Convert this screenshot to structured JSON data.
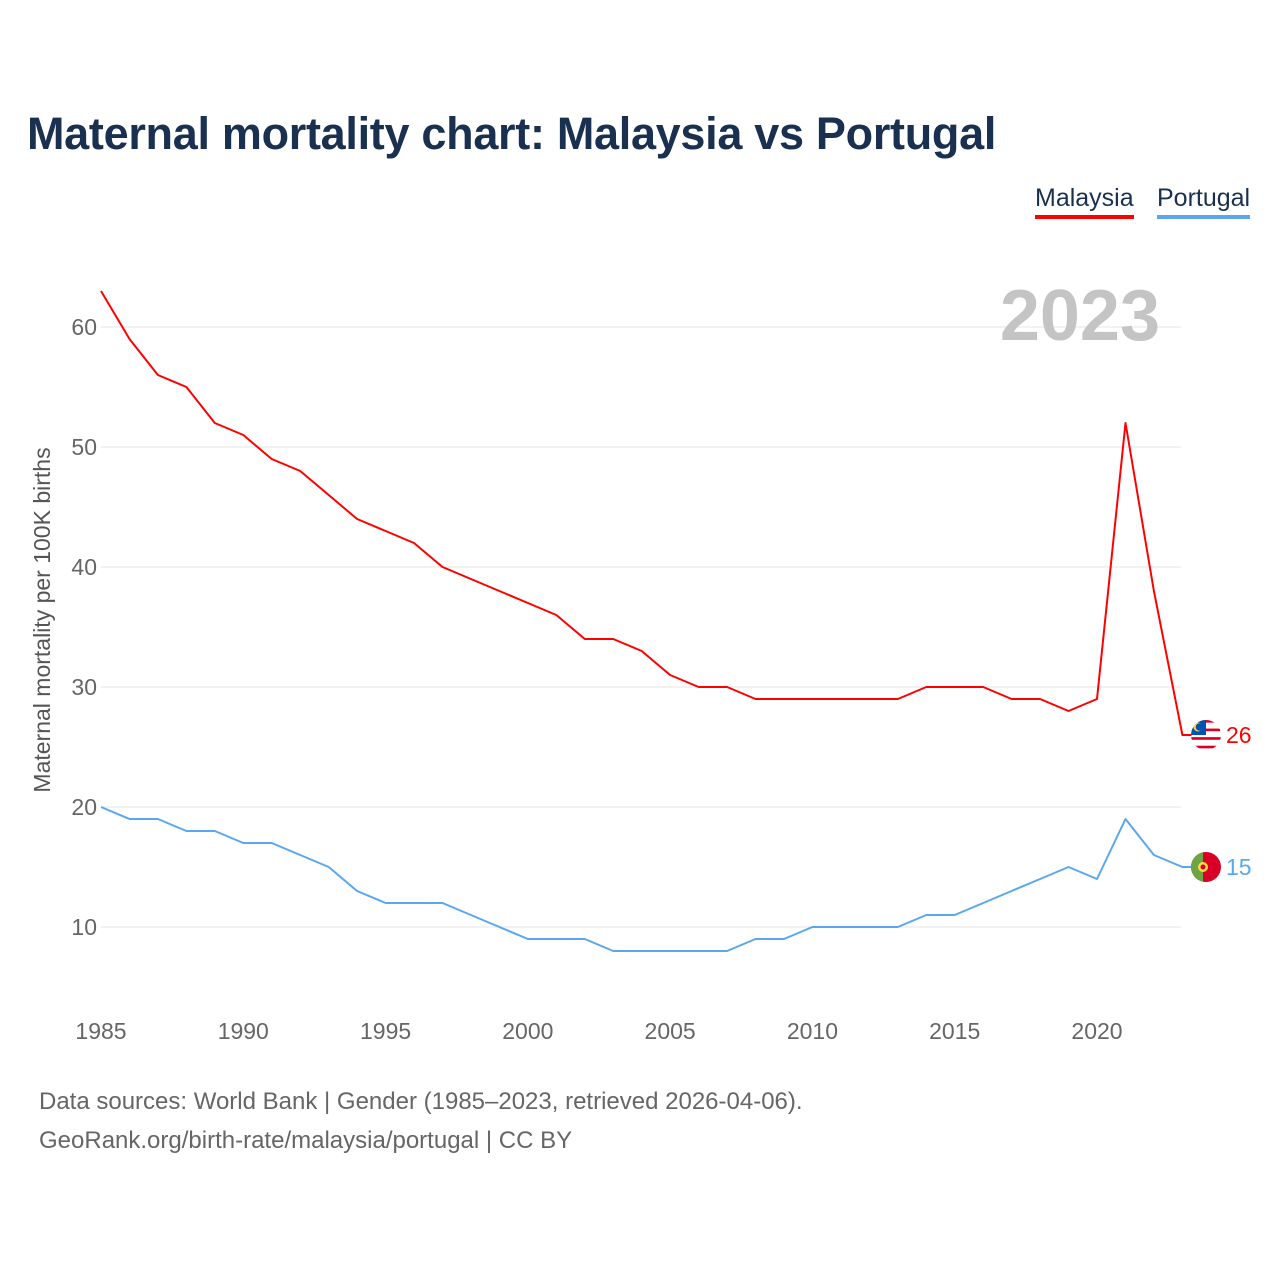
{
  "chart_data": {
    "type": "line",
    "title": "Maternal mortality chart: Malaysia vs Portugal",
    "xlabel": "",
    "ylabel": "Maternal mortality per 100K births",
    "year_label": "2023",
    "xlim": [
      1985,
      2023
    ],
    "ylim": [
      4,
      66
    ],
    "x_ticks": [
      1985,
      1990,
      1995,
      2000,
      2005,
      2010,
      2015,
      2020
    ],
    "y_ticks": [
      10,
      20,
      30,
      40,
      50,
      60
    ],
    "grid": true,
    "legend_position": "top-right",
    "x": [
      1985,
      1986,
      1987,
      1988,
      1989,
      1990,
      1991,
      1992,
      1993,
      1994,
      1995,
      1996,
      1997,
      1998,
      1999,
      2000,
      2001,
      2002,
      2003,
      2004,
      2005,
      2006,
      2007,
      2008,
      2009,
      2010,
      2011,
      2012,
      2013,
      2014,
      2015,
      2016,
      2017,
      2018,
      2019,
      2020,
      2021,
      2022,
      2023
    ],
    "series": [
      {
        "name": "Malaysia",
        "color": "#ff0000",
        "end_label": "26",
        "values": [
          63,
          59,
          56,
          55,
          52,
          51,
          49,
          48,
          46,
          44,
          43,
          42,
          40,
          39,
          38,
          37,
          36,
          34,
          34,
          33,
          31,
          30,
          30,
          29,
          29,
          29,
          29,
          29,
          29,
          30,
          30,
          30,
          29,
          29,
          28,
          29,
          52,
          38,
          26
        ]
      },
      {
        "name": "Portugal",
        "color": "#5ba7ee",
        "end_label": "15",
        "values": [
          20,
          19,
          19,
          18,
          18,
          17,
          17,
          16,
          15,
          13,
          12,
          12,
          12,
          11,
          10,
          9,
          9,
          9,
          8,
          8,
          8,
          8,
          8,
          9,
          9,
          10,
          10,
          10,
          10,
          11,
          11,
          12,
          13,
          14,
          15,
          14,
          19,
          16,
          15
        ]
      }
    ]
  },
  "footer": {
    "line1": "Data sources: World Bank | Gender (1985–2023, retrieved 2026-04-06).",
    "line2": "GeoRank.org/birth-rate/malaysia/portugal | CC BY"
  }
}
